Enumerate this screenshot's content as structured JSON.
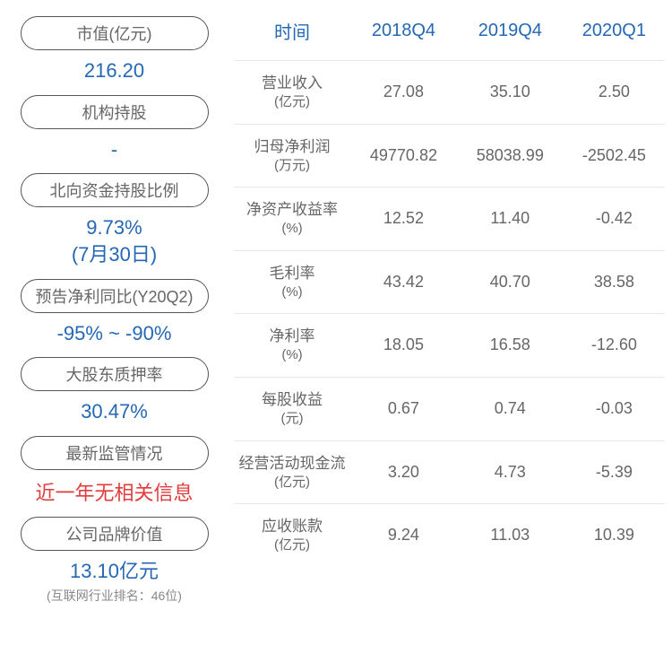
{
  "left": {
    "items": [
      {
        "label": "市值(亿元)",
        "value": "216.20",
        "value_color": "#2468b5"
      },
      {
        "label": "机构持股",
        "value": "-",
        "value_color": "#2468b5"
      },
      {
        "label": "北向资金持股比例",
        "value": "9.73%\n(7月30日)",
        "value_color": "#2468b5"
      },
      {
        "label": "预告净利同比(Y20Q2)",
        "value": "-95% ~ -90%",
        "value_color": "#2468b5"
      },
      {
        "label": "大股东质押率",
        "value": "30.47%",
        "value_color": "#2468b5"
      },
      {
        "label": "最新监管情况",
        "value": "近一年无相关信息",
        "value_color": "#e33b3b"
      },
      {
        "label": "公司品牌价值",
        "value": "13.10亿元",
        "value_color": "#2468b5",
        "sub": "(互联网行业排名：46位)"
      }
    ]
  },
  "table": {
    "columns": [
      "时间",
      "2018Q4",
      "2019Q4",
      "2020Q1"
    ],
    "rows": [
      {
        "name": "营业收入",
        "unit": "(亿元)",
        "cells": [
          "27.08",
          "35.10",
          "2.50"
        ]
      },
      {
        "name": "归母净利润",
        "unit": "(万元)",
        "cells": [
          "49770.82",
          "58038.99",
          "-2502.45"
        ]
      },
      {
        "name": "净资产收益率",
        "unit": "(%)",
        "cells": [
          "12.52",
          "11.40",
          "-0.42"
        ]
      },
      {
        "name": "毛利率",
        "unit": "(%)",
        "cells": [
          "43.42",
          "40.70",
          "38.58"
        ]
      },
      {
        "name": "净利率",
        "unit": "(%)",
        "cells": [
          "18.05",
          "16.58",
          "-12.60"
        ]
      },
      {
        "name": "每股收益",
        "unit": "(元)",
        "cells": [
          "0.67",
          "0.74",
          "-0.03"
        ]
      },
      {
        "name": "经营活动现金流",
        "unit": "(亿元)",
        "cells": [
          "3.20",
          "4.73",
          "-5.39"
        ]
      },
      {
        "name": "应收账款",
        "unit": "(亿元)",
        "cells": [
          "9.24",
          "11.03",
          "10.39"
        ]
      }
    ]
  },
  "colors": {
    "header_text": "#2468b5",
    "body_text": "#666666",
    "border": "#e6e6e6",
    "pill_border": "#555555",
    "red": "#e33b3b"
  }
}
